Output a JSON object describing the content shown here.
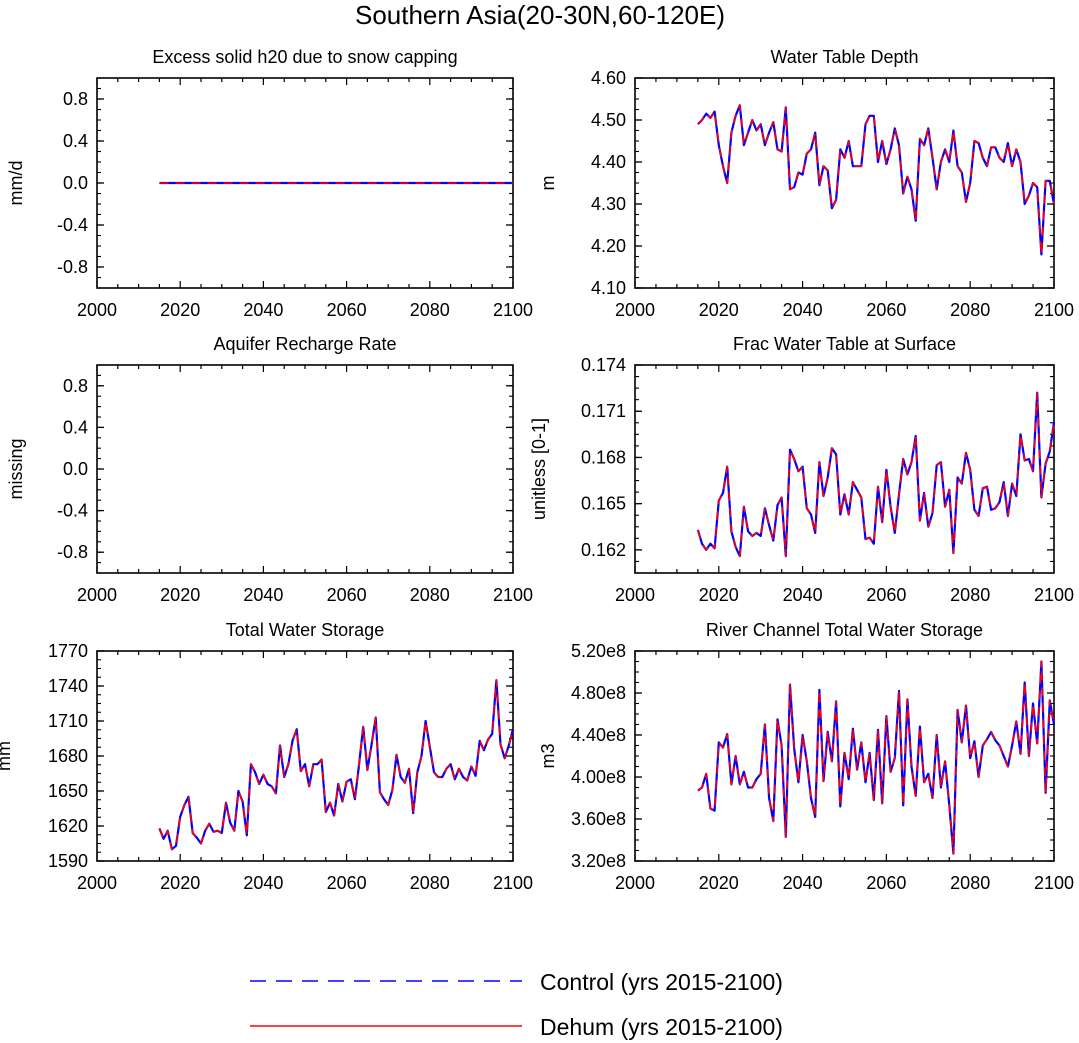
{
  "figure": {
    "title": "Southern Asia(20-30N,60-120E)"
  },
  "legend": {
    "entries": [
      {
        "label": "Control (yrs 2015-2100)",
        "color": "#0000ff",
        "style": "dashed"
      },
      {
        "label": "Dehum (yrs 2015-2100)",
        "color": "#ff0000",
        "style": "solid"
      }
    ],
    "placement": "bottom-center"
  },
  "colors": {
    "control": "#0000ff",
    "dehum": "#ff0000"
  },
  "chart_data": [
    {
      "type": "line",
      "title": "Excess solid h20 due to snow capping",
      "ylabel": "mm/d",
      "xlabel": "",
      "xlim": [
        2000,
        2100
      ],
      "ylim": [
        -1.0,
        1.0
      ],
      "xticks": [
        "2000",
        "2020",
        "2040",
        "2060",
        "2080",
        "2100"
      ],
      "yticks": [
        "-0.8",
        "-0.4",
        "0.0",
        "0.4",
        "0.8"
      ],
      "x_start": 2015,
      "y": [
        0,
        0,
        0,
        0,
        0,
        0,
        0,
        0,
        0,
        0,
        0,
        0,
        0,
        0,
        0,
        0,
        0,
        0,
        0,
        0,
        0,
        0,
        0,
        0,
        0,
        0,
        0,
        0,
        0,
        0,
        0,
        0,
        0,
        0,
        0,
        0,
        0,
        0,
        0,
        0,
        0,
        0,
        0,
        0,
        0,
        0,
        0,
        0,
        0,
        0,
        0,
        0,
        0,
        0,
        0,
        0,
        0,
        0,
        0,
        0,
        0,
        0,
        0,
        0,
        0,
        0,
        0,
        0,
        0,
        0,
        0,
        0,
        0,
        0,
        0,
        0,
        0,
        0,
        0,
        0,
        0,
        0,
        0,
        0,
        0,
        0
      ]
    },
    {
      "type": "line",
      "title": "Water Table Depth",
      "ylabel": "m",
      "xlabel": "",
      "xlim": [
        2000,
        2100
      ],
      "ylim": [
        4.1,
        4.6
      ],
      "xticks": [
        "2000",
        "2020",
        "2040",
        "2060",
        "2080",
        "2100"
      ],
      "yticks": [
        "4.10",
        "4.20",
        "4.30",
        "4.40",
        "4.50",
        "4.60"
      ],
      "x_start": 2015,
      "y": [
        4.49,
        4.5,
        4.515,
        4.505,
        4.52,
        4.44,
        4.39,
        4.35,
        4.47,
        4.51,
        4.535,
        4.44,
        4.47,
        4.5,
        4.475,
        4.49,
        4.44,
        4.47,
        4.495,
        4.43,
        4.425,
        4.53,
        4.335,
        4.34,
        4.375,
        4.37,
        4.42,
        4.43,
        4.47,
        4.345,
        4.39,
        4.38,
        4.29,
        4.31,
        4.43,
        4.41,
        4.45,
        4.39,
        4.39,
        4.39,
        4.49,
        4.51,
        4.51,
        4.4,
        4.45,
        4.395,
        4.43,
        4.48,
        4.44,
        4.325,
        4.365,
        4.335,
        4.26,
        4.455,
        4.44,
        4.48,
        4.41,
        4.335,
        4.4,
        4.43,
        4.4,
        4.475,
        4.39,
        4.375,
        4.305,
        4.35,
        4.45,
        4.445,
        4.41,
        4.39,
        4.435,
        4.435,
        4.41,
        4.4,
        4.445,
        4.39,
        4.43,
        4.4,
        4.3,
        4.32,
        4.35,
        4.34,
        4.18,
        4.355,
        4.355,
        4.3
      ]
    },
    {
      "type": "line",
      "title": "Aquifer Recharge Rate",
      "ylabel": "missing",
      "xlabel": "",
      "xlim": [
        2000,
        2100
      ],
      "ylim": [
        -1.0,
        1.0
      ],
      "xticks": [
        "2000",
        "2020",
        "2040",
        "2060",
        "2080",
        "2100"
      ],
      "yticks": [
        "-0.8",
        "-0.4",
        "0.0",
        "0.4",
        "0.8"
      ],
      "x_start": 2015,
      "y": []
    },
    {
      "type": "line",
      "title": "Frac Water Table at Surface",
      "ylabel": "unitless [0-1]",
      "xlabel": "",
      "xlim": [
        2000,
        2100
      ],
      "ylim": [
        0.1605,
        0.174
      ],
      "xticks": [
        "2000",
        "2020",
        "2040",
        "2060",
        "2080",
        "2100"
      ],
      "yticks": [
        "0.162",
        "0.165",
        "0.168",
        "0.171",
        "0.174"
      ],
      "x_start": 2015,
      "y": [
        0.1633,
        0.1624,
        0.162,
        0.1624,
        0.1621,
        0.1652,
        0.1657,
        0.1674,
        0.1632,
        0.1622,
        0.1616,
        0.1648,
        0.1632,
        0.1629,
        0.1631,
        0.1629,
        0.1647,
        0.1636,
        0.1626,
        0.1649,
        0.1654,
        0.1616,
        0.1685,
        0.1679,
        0.1671,
        0.1674,
        0.1647,
        0.1643,
        0.1631,
        0.1677,
        0.1655,
        0.1667,
        0.1686,
        0.1682,
        0.1643,
        0.1656,
        0.1643,
        0.1664,
        0.1659,
        0.1654,
        0.1627,
        0.1628,
        0.1624,
        0.1661,
        0.1638,
        0.1672,
        0.1648,
        0.1631,
        0.1656,
        0.1679,
        0.1669,
        0.1677,
        0.1694,
        0.1639,
        0.1657,
        0.1635,
        0.1644,
        0.1675,
        0.1677,
        0.1648,
        0.1659,
        0.1618,
        0.1667,
        0.1663,
        0.1683,
        0.1672,
        0.1646,
        0.1642,
        0.166,
        0.1661,
        0.1646,
        0.1647,
        0.1651,
        0.1664,
        0.1642,
        0.1663,
        0.1655,
        0.1695,
        0.1678,
        0.1679,
        0.1671,
        0.1722,
        0.1654,
        0.1676,
        0.1684,
        0.1703
      ]
    },
    {
      "type": "line",
      "title": "Total Water Storage",
      "ylabel": "mm",
      "xlabel": "",
      "xlim": [
        2000,
        2100
      ],
      "ylim": [
        1590,
        1770
      ],
      "xticks": [
        "2000",
        "2020",
        "2040",
        "2060",
        "2080",
        "2100"
      ],
      "yticks": [
        "1590",
        "1620",
        "1650",
        "1680",
        "1710",
        "1740",
        "1770"
      ],
      "x_start": 2015,
      "y": [
        1618,
        1609,
        1616,
        1600,
        1603,
        1628,
        1638,
        1645,
        1614,
        1610,
        1605,
        1616,
        1622,
        1615,
        1616,
        1614,
        1640,
        1623,
        1616,
        1650,
        1641,
        1612,
        1673,
        1666,
        1656,
        1664,
        1656,
        1654,
        1648,
        1689,
        1662,
        1673,
        1693,
        1703,
        1667,
        1673,
        1654,
        1673,
        1673,
        1677,
        1632,
        1640,
        1629,
        1656,
        1641,
        1658,
        1660,
        1643,
        1673,
        1705,
        1668,
        1690,
        1713,
        1649,
        1643,
        1638,
        1651,
        1681,
        1662,
        1657,
        1669,
        1631,
        1666,
        1680,
        1710,
        1688,
        1666,
        1662,
        1662,
        1669,
        1673,
        1660,
        1669,
        1662,
        1659,
        1671,
        1663,
        1693,
        1685,
        1694,
        1699,
        1745,
        1690,
        1678,
        1689,
        1703
      ]
    },
    {
      "type": "line",
      "title": "River Channel Total Water Storage",
      "ylabel": "m3",
      "xlabel": "",
      "xlim": [
        2000,
        2100
      ],
      "ylim": [
        320000000.0,
        520000000.0
      ],
      "xticks": [
        "2000",
        "2020",
        "2040",
        "2060",
        "2080",
        "2100"
      ],
      "yticks": [
        "3.20e8",
        "3.60e8",
        "4.00e8",
        "4.40e8",
        "4.80e8",
        "5.20e8"
      ],
      "x_start": 2015,
      "y": [
        387000000.0,
        390000000.0,
        403000000.0,
        370000000.0,
        368000000.0,
        433000000.0,
        428000000.0,
        441000000.0,
        393000000.0,
        420000000.0,
        393000000.0,
        405000000.0,
        390000000.0,
        390000000.0,
        398000000.0,
        403000000.0,
        450000000.0,
        380000000.0,
        358000000.0,
        455000000.0,
        430000000.0,
        343000000.0,
        488000000.0,
        427000000.0,
        395000000.0,
        440000000.0,
        415000000.0,
        380000000.0,
        362000000.0,
        483000000.0,
        396000000.0,
        443000000.0,
        415000000.0,
        472000000.0,
        372000000.0,
        423000000.0,
        398000000.0,
        446000000.0,
        407000000.0,
        433000000.0,
        395000000.0,
        423000000.0,
        378000000.0,
        445000000.0,
        375000000.0,
        458000000.0,
        405000000.0,
        418000000.0,
        482000000.0,
        373000000.0,
        474000000.0,
        410000000.0,
        382000000.0,
        448000000.0,
        395000000.0,
        403000000.0,
        380000000.0,
        440000000.0,
        390000000.0,
        415000000.0,
        373000000.0,
        327000000.0,
        464000000.0,
        433000000.0,
        468000000.0,
        418000000.0,
        434000000.0,
        400000000.0,
        430000000.0,
        436000000.0,
        443000000.0,
        435000000.0,
        430000000.0,
        420000000.0,
        410000000.0,
        430000000.0,
        453000000.0,
        422000000.0,
        490000000.0,
        420000000.0,
        470000000.0,
        432000000.0,
        510000000.0,
        385000000.0,
        473000000.0,
        450000000.0
      ]
    }
  ]
}
